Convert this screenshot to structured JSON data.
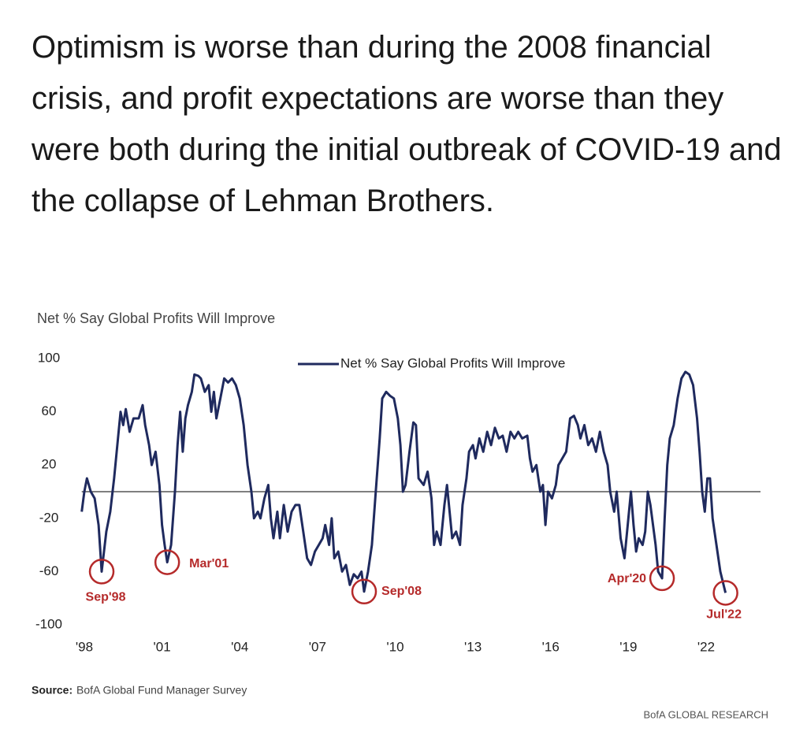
{
  "headline": "Optimism is worse than during the 2008 financial crisis, and profit expectations are worse than they were both during the initial outbreak of COVID-19 and the collapse of Lehman Brothers.",
  "chart_data": {
    "type": "line",
    "y_axis_label": "Net % Say Global Profits Will Improve",
    "series": [
      {
        "name": "Net % Say Global Profits Will Improve",
        "color": "#1f2a5e",
        "x": [
          1997.9,
          1998.0,
          1998.1,
          1998.25,
          1998.4,
          1998.55,
          1998.67,
          1998.85,
          1999.0,
          1999.15,
          1999.3,
          1999.4,
          1999.5,
          1999.6,
          1999.75,
          1999.9,
          2000.1,
          2000.25,
          2000.35,
          2000.5,
          2000.6,
          2000.75,
          2000.9,
          2001.0,
          2001.1,
          2001.2,
          2001.35,
          2001.5,
          2001.6,
          2001.7,
          2001.8,
          2001.9,
          2002.0,
          2002.15,
          2002.25,
          2002.4,
          2002.5,
          2002.65,
          2002.8,
          2002.9,
          2003.0,
          2003.1,
          2003.25,
          2003.4,
          2003.55,
          2003.7,
          2003.85,
          2004.0,
          2004.15,
          2004.3,
          2004.45,
          2004.55,
          2004.7,
          2004.8,
          2004.95,
          2005.1,
          2005.2,
          2005.3,
          2005.45,
          2005.55,
          2005.7,
          2005.85,
          2006.0,
          2006.15,
          2006.3,
          2006.45,
          2006.6,
          2006.75,
          2006.9,
          2007.05,
          2007.2,
          2007.3,
          2007.45,
          2007.55,
          2007.65,
          2007.8,
          2007.95,
          2008.1,
          2008.25,
          2008.4,
          2008.55,
          2008.7,
          2008.8,
          2008.95,
          2009.1,
          2009.25,
          2009.4,
          2009.5,
          2009.65,
          2009.8,
          2009.95,
          2010.1,
          2010.2,
          2010.3,
          2010.4,
          2010.55,
          2010.7,
          2010.8,
          2010.9,
          2011.1,
          2011.25,
          2011.4,
          2011.5,
          2011.6,
          2011.75,
          2011.9,
          2012.0,
          2012.1,
          2012.2,
          2012.35,
          2012.5,
          2012.6,
          2012.75,
          2012.85,
          2013.0,
          2013.1,
          2013.25,
          2013.4,
          2013.55,
          2013.7,
          2013.85,
          2014.0,
          2014.15,
          2014.3,
          2014.45,
          2014.6,
          2014.75,
          2014.9,
          2015.1,
          2015.2,
          2015.3,
          2015.45,
          2015.6,
          2015.7,
          2015.8,
          2015.9,
          2016.05,
          2016.2,
          2016.3,
          2016.45,
          2016.6,
          2016.75,
          2016.9,
          2017.05,
          2017.15,
          2017.3,
          2017.45,
          2017.6,
          2017.75,
          2017.9,
          2018.05,
          2018.2,
          2018.3,
          2018.45,
          2018.55,
          2018.7,
          2018.85,
          2018.95,
          2019.1,
          2019.2,
          2019.3,
          2019.4,
          2019.55,
          2019.65,
          2019.75,
          2019.85,
          2019.95,
          2020.05,
          2020.15,
          2020.3,
          2020.4,
          2020.5,
          2020.6,
          2020.75,
          2020.9,
          2021.05,
          2021.2,
          2021.35,
          2021.5,
          2021.65,
          2021.75,
          2021.85,
          2021.95,
          2022.05,
          2022.15,
          2022.25,
          2022.4,
          2022.55,
          2022.65,
          2022.75
        ],
        "values": [
          -15,
          0,
          10,
          0,
          -5,
          -25,
          -60,
          -30,
          -15,
          10,
          40,
          60,
          50,
          62,
          45,
          55,
          55,
          65,
          50,
          35,
          20,
          30,
          5,
          -25,
          -40,
          -53,
          -40,
          0,
          35,
          60,
          30,
          55,
          65,
          75,
          88,
          87,
          85,
          75,
          80,
          60,
          75,
          55,
          70,
          85,
          82,
          85,
          80,
          70,
          50,
          20,
          0,
          -20,
          -15,
          -20,
          -5,
          5,
          -20,
          -35,
          -15,
          -35,
          -10,
          -30,
          -15,
          -10,
          -10,
          -30,
          -50,
          -55,
          -45,
          -40,
          -35,
          -25,
          -40,
          -20,
          -50,
          -45,
          -60,
          -55,
          -70,
          -62,
          -65,
          -60,
          -75,
          -60,
          -40,
          0,
          40,
          70,
          75,
          72,
          70,
          55,
          35,
          0,
          5,
          30,
          52,
          50,
          10,
          5,
          15,
          -5,
          -40,
          -30,
          -40,
          -10,
          5,
          -15,
          -35,
          -30,
          -40,
          -10,
          10,
          30,
          35,
          25,
          40,
          30,
          45,
          35,
          48,
          40,
          42,
          30,
          45,
          40,
          45,
          40,
          42,
          25,
          15,
          20,
          0,
          5,
          -25,
          0,
          -5,
          5,
          20,
          25,
          30,
          55,
          57,
          50,
          40,
          50,
          35,
          40,
          30,
          45,
          30,
          20,
          0,
          -15,
          0,
          -35,
          -50,
          -30,
          0,
          -25,
          -45,
          -35,
          -40,
          -30,
          0,
          -10,
          -25,
          -40,
          -60,
          -65,
          -20,
          20,
          40,
          50,
          70,
          85,
          90,
          88,
          80,
          55,
          30,
          0,
          -15,
          10,
          10,
          -20,
          -40,
          -60,
          -68,
          -76
        ]
      }
    ],
    "xlim": [
      1997.9,
      2024.1
    ],
    "xticks": [
      {
        "value": 1998,
        "label": "'98"
      },
      {
        "value": 2001,
        "label": "'01"
      },
      {
        "value": 2004,
        "label": "'04"
      },
      {
        "value": 2007,
        "label": "'07"
      },
      {
        "value": 2010,
        "label": "'10"
      },
      {
        "value": 2013,
        "label": "'13"
      },
      {
        "value": 2016,
        "label": "'16"
      },
      {
        "value": 2019,
        "label": "'19"
      },
      {
        "value": 2022,
        "label": "'22"
      }
    ],
    "ylim": [
      -100,
      100
    ],
    "yticks": [
      100,
      60,
      20,
      -20,
      -60,
      -100
    ],
    "annotation_color": "#b52a2a",
    "annotations": [
      {
        "label": "Sep'98",
        "x": 1998.67,
        "y": -60
      },
      {
        "label": "Mar'01",
        "x": 2001.2,
        "y": -53
      },
      {
        "label": "Sep'08",
        "x": 2008.8,
        "y": -75
      },
      {
        "label": "Apr'20",
        "x": 2020.3,
        "y": -65
      },
      {
        "label": "Jul'22",
        "x": 2022.75,
        "y": -76
      }
    ]
  },
  "source": {
    "label": "Source:",
    "text": "BofA Global Fund Manager Survey"
  },
  "brand": "BofA GLOBAL RESEARCH"
}
